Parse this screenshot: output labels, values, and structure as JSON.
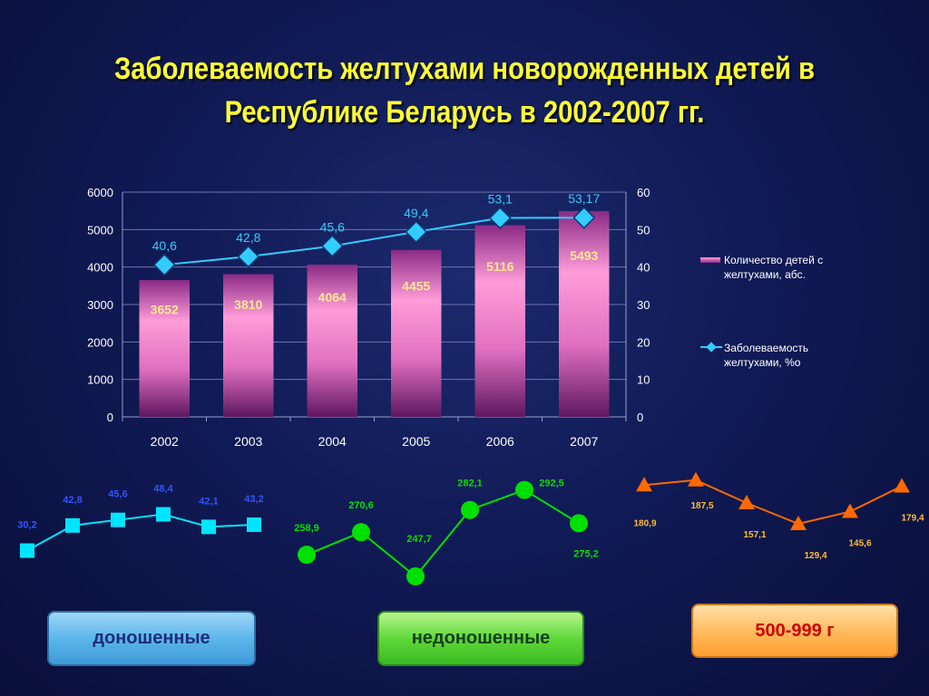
{
  "title": {
    "line1": "Заболеваемость желтухами новорожденных детей в",
    "line2": "Республике Беларусь в 2002-2007 гг."
  },
  "colors": {
    "title": "#ffff33",
    "bar_top": "#ff9cd8",
    "bar_bottom": "#7a1f6e",
    "line": "#33ccff",
    "marker": "#33ccff",
    "term": "#00e5ff",
    "preterm": "#00e000",
    "vlbw": "#ff6a00"
  },
  "chart_data": [
    {
      "type": "bar",
      "categories": [
        "2002",
        "2003",
        "2004",
        "2005",
        "2006",
        "2007"
      ],
      "series": [
        {
          "name": "Количество детей с желтухами, абс.",
          "type": "bar",
          "axis": "left",
          "values": [
            3652,
            3810,
            4064,
            4455,
            5116,
            5493
          ],
          "labels": [
            "3652",
            "3810",
            "4064",
            "4455",
            "5116",
            "5493"
          ]
        },
        {
          "name": "Заболеваемость желтухами, %о",
          "type": "line",
          "axis": "right",
          "values": [
            40.6,
            42.8,
            45.6,
            49.4,
            53.1,
            53.17
          ],
          "labels": [
            "40,6",
            "42,8",
            "45,6",
            "49,4",
            "53,1",
            "53,17"
          ]
        }
      ],
      "ylim_left": [
        0,
        6000
      ],
      "yticks_left": [
        "0",
        "1000",
        "2000",
        "3000",
        "4000",
        "5000",
        "6000"
      ],
      "ylim_right": [
        0,
        60
      ],
      "yticks_right": [
        "0",
        "10",
        "20",
        "30",
        "40",
        "50",
        "60"
      ],
      "legend_position": "right",
      "grid": true
    },
    {
      "type": "line",
      "series_label": "доношенные",
      "values": [
        30.2,
        42.8,
        45.6,
        48.4,
        42.1,
        43.2
      ],
      "labels": [
        "30,2",
        "42,8",
        "45,6",
        "48,4",
        "42,1",
        "43,2"
      ],
      "marker": "square"
    },
    {
      "type": "line",
      "series_label": "недоношенные",
      "values": [
        258.9,
        270.6,
        247.7,
        282.1,
        292.5,
        275.2
      ],
      "labels": [
        "258,9",
        "270,6",
        "247,7",
        "282,1",
        "292,5",
        "275,2"
      ],
      "marker": "circle"
    },
    {
      "type": "line",
      "series_label": "500-999 г",
      "values": [
        180.9,
        187.5,
        157.1,
        129.4,
        145.6,
        179.4
      ],
      "labels": [
        "180,9",
        "187,5",
        "157,1",
        "129,4",
        "145,6",
        "179,4"
      ],
      "marker": "triangle"
    }
  ],
  "buttons": {
    "term": "доношенные",
    "preterm": "недоношенные",
    "vlbw": "500-999 г"
  }
}
